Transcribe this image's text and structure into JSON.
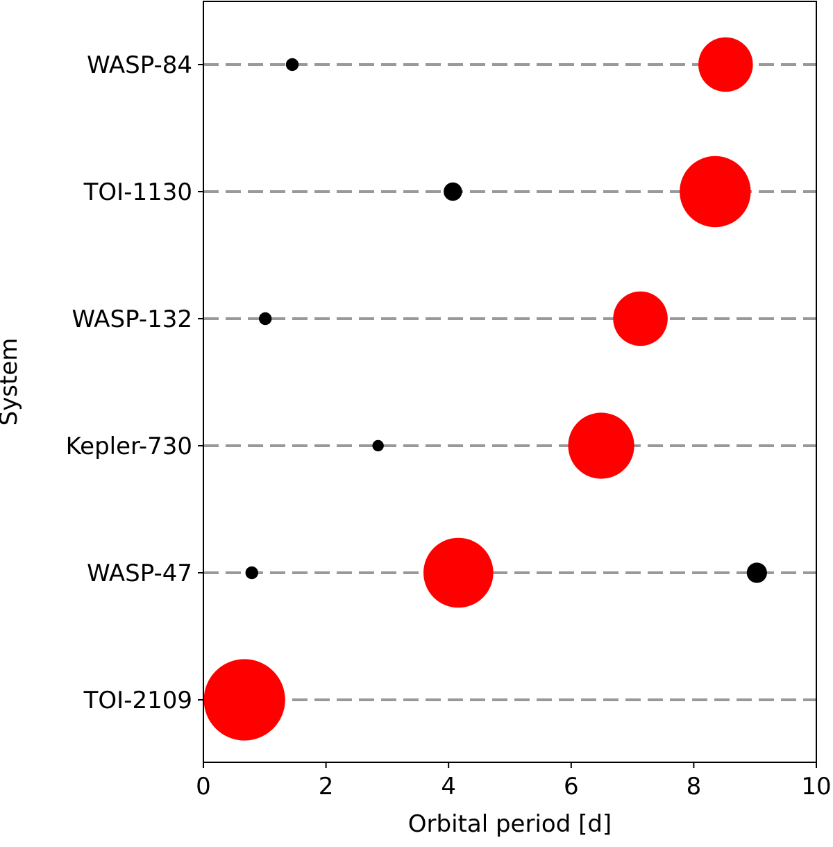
{
  "chart_data": {
    "type": "scatter",
    "xlabel": "Orbital period [d]",
    "ylabel": "System",
    "xlim": [
      0,
      10
    ],
    "xticks": [
      0,
      2,
      4,
      6,
      8,
      10
    ],
    "grid": false,
    "guide_lines": "dashed horizontal line per system",
    "categories": [
      "WASP-84",
      "TOI-1130",
      "WASP-132",
      "Kepler-730",
      "WASP-47",
      "TOI-2109"
    ],
    "colors": {
      "highlight": "#ff0000",
      "companion": "#000000",
      "guide": "#999999"
    },
    "series": [
      {
        "color": "#ff0000",
        "points": [
          {
            "system": "WASP-84",
            "period": 8.52,
            "size": 0.43
          },
          {
            "system": "TOI-1130",
            "period": 8.35,
            "size": 0.56
          },
          {
            "system": "WASP-132",
            "period": 7.13,
            "size": 0.43
          },
          {
            "system": "Kepler-730",
            "period": 6.49,
            "size": 0.52
          },
          {
            "system": "WASP-47",
            "period": 4.16,
            "size": 0.55
          },
          {
            "system": "TOI-2109",
            "period": 0.67,
            "size": 0.64
          }
        ]
      },
      {
        "color": "#000000",
        "points": [
          {
            "system": "WASP-84",
            "period": 1.45,
            "size": 0.1
          },
          {
            "system": "TOI-1130",
            "period": 4.07,
            "size": 0.145
          },
          {
            "system": "WASP-132",
            "period": 1.01,
            "size": 0.1
          },
          {
            "system": "Kepler-730",
            "period": 2.85,
            "size": 0.09
          },
          {
            "system": "WASP-47",
            "period": 0.79,
            "size": 0.1
          },
          {
            "system": "WASP-47",
            "period": 9.03,
            "size": 0.16
          }
        ]
      }
    ]
  }
}
